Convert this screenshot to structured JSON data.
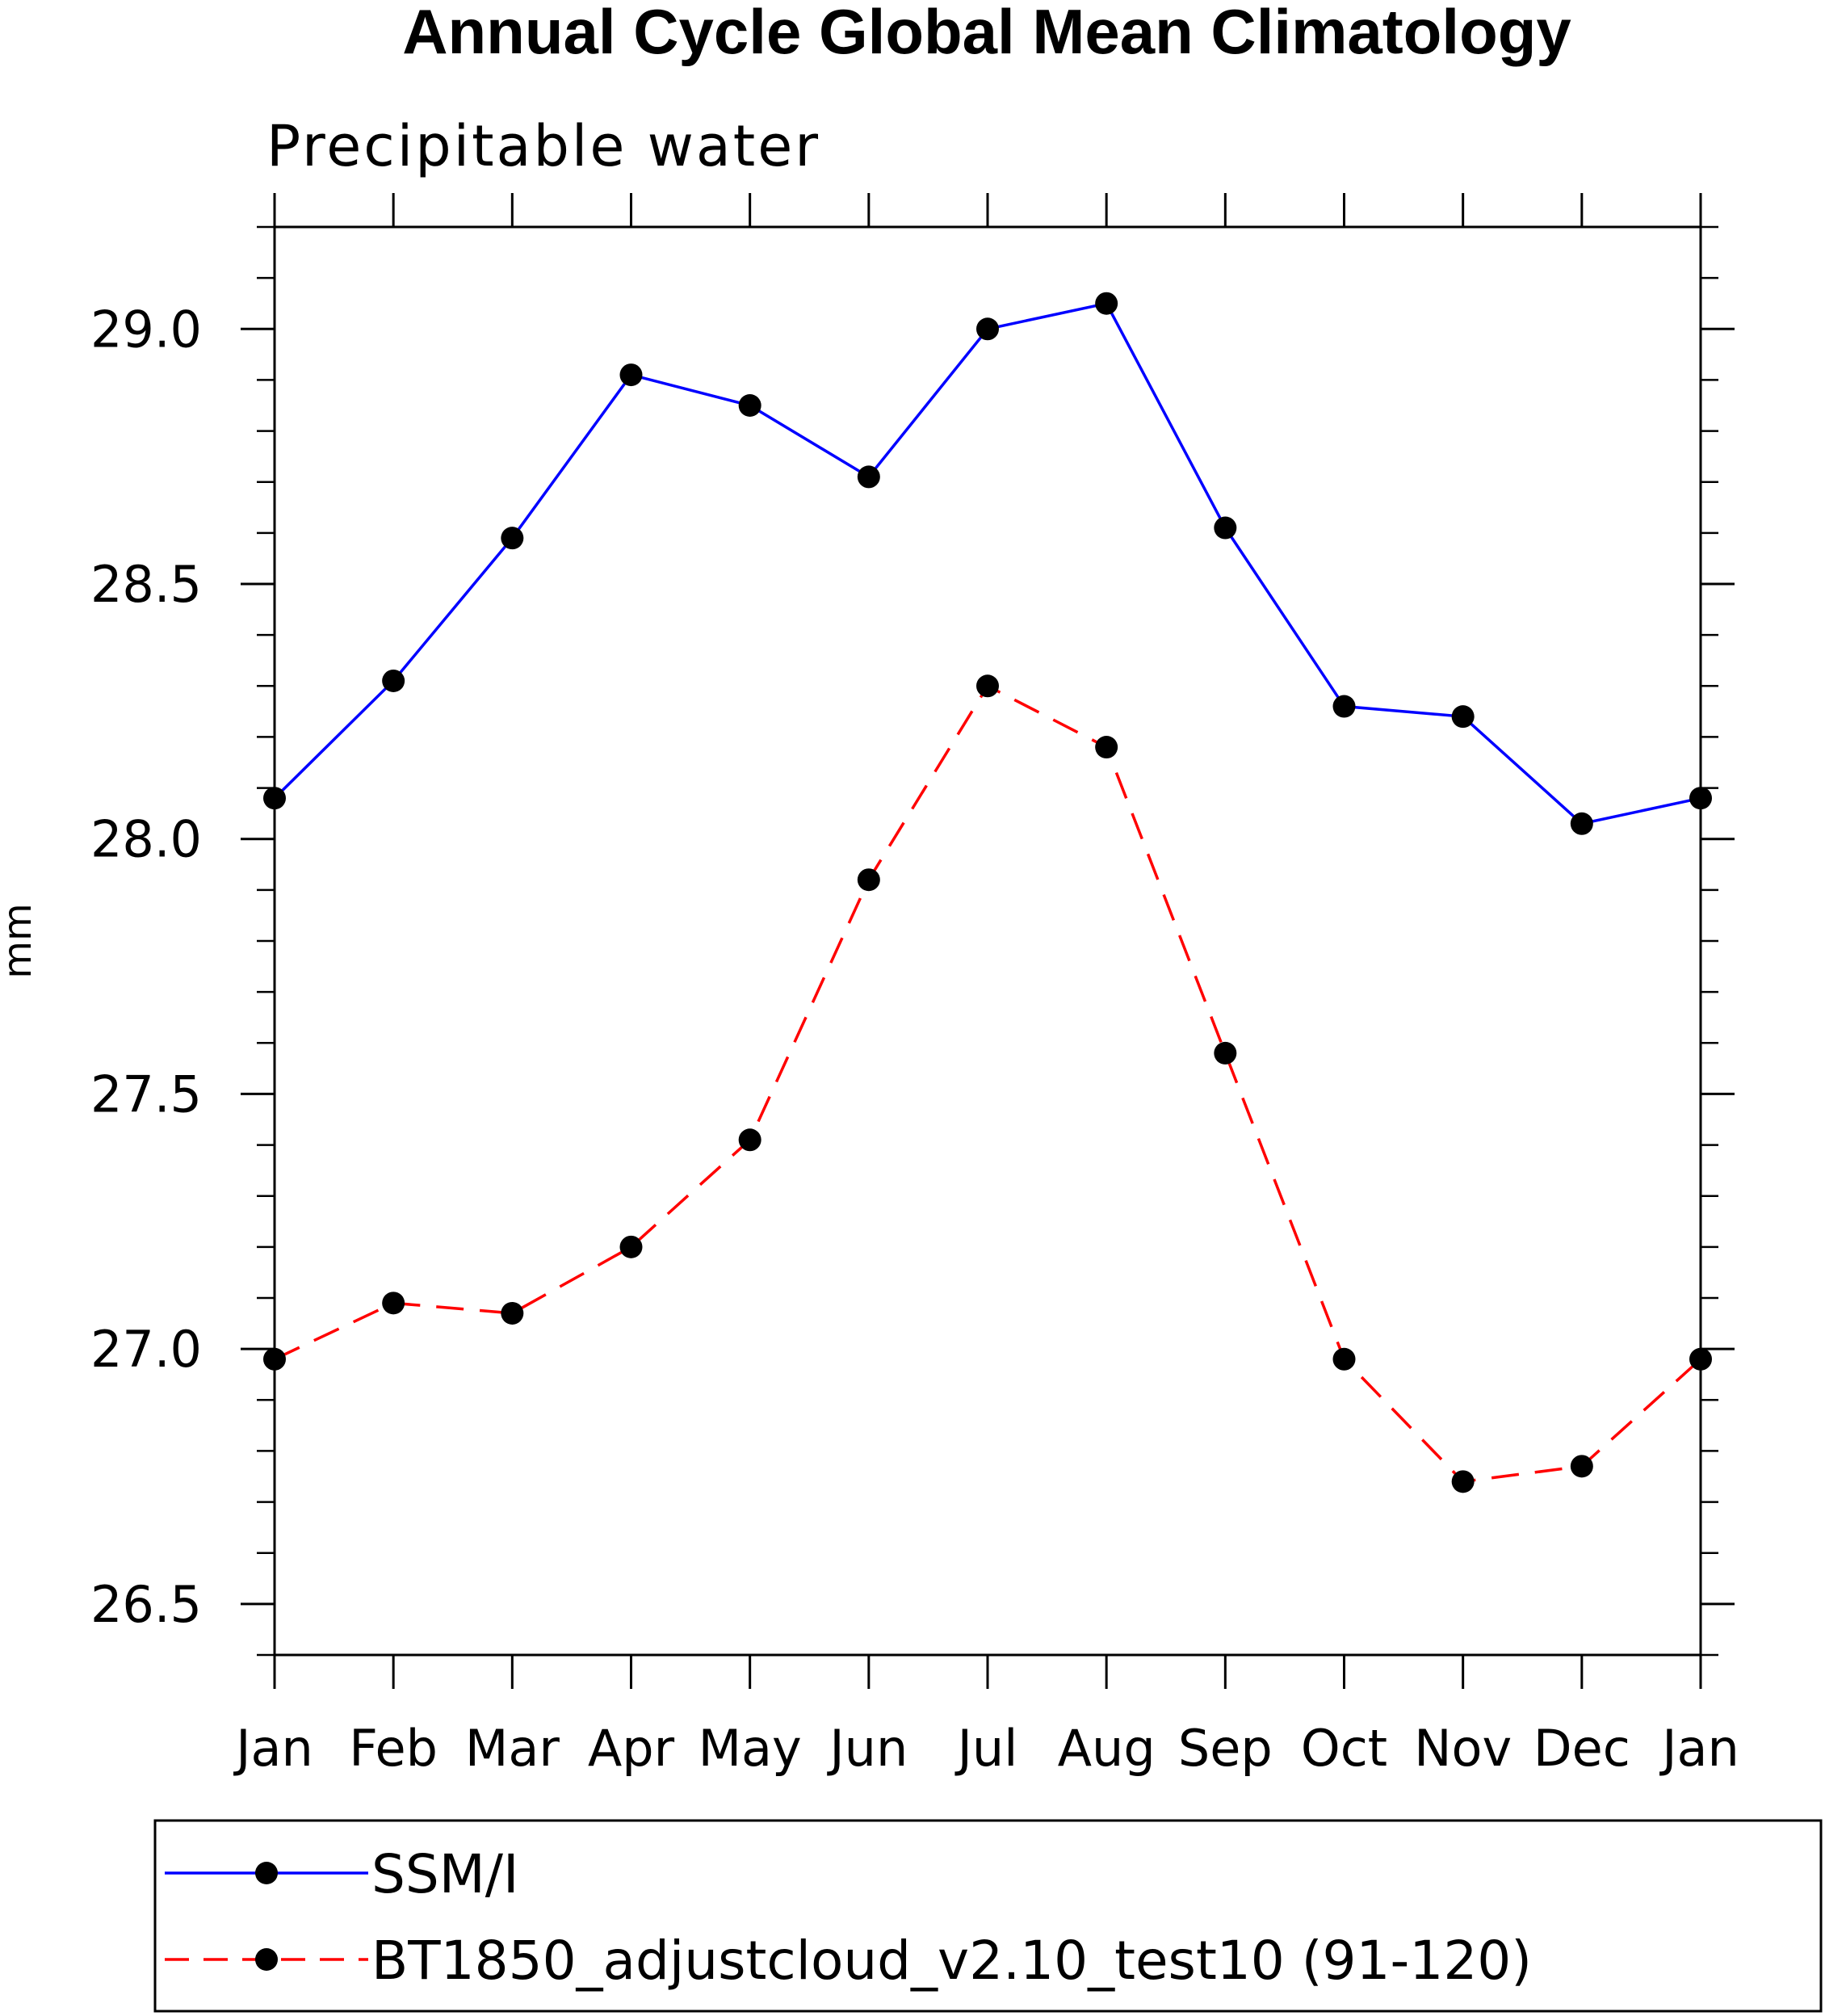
{
  "chart_data": {
    "type": "line",
    "title": "Annual Cycle Global Mean Climatology",
    "subtitle": "Precipitable water",
    "xlabel": "",
    "ylabel": "mm",
    "categories": [
      "Jan",
      "Feb",
      "Mar",
      "Apr",
      "May",
      "Jun",
      "Jul",
      "Aug",
      "Sep",
      "Oct",
      "Nov",
      "Dec",
      "Jan"
    ],
    "ylim": [
      26.4,
      29.2
    ],
    "yticks": [
      "26.5",
      "27.0",
      "27.5",
      "28.0",
      "28.5",
      "29.0"
    ],
    "ytick_values": [
      26.5,
      27.0,
      27.5,
      28.0,
      28.5,
      29.0
    ],
    "grid": false,
    "legend_position": "bottom",
    "series": [
      {
        "name": "SSM/I",
        "color": "#0000ff",
        "style": "solid",
        "marker": "circle",
        "values": [
          28.08,
          28.31,
          28.59,
          28.91,
          28.85,
          28.71,
          29.0,
          29.05,
          28.61,
          28.26,
          28.24,
          28.03,
          28.08
        ]
      },
      {
        "name": "BT1850_adjustcloud_v2.10_test10 (91-120)",
        "color": "#ff0000",
        "style": "dashed",
        "marker": "circle",
        "values": [
          26.98,
          27.09,
          27.07,
          27.2,
          27.41,
          27.92,
          28.3,
          28.18,
          27.58,
          26.98,
          26.74,
          26.77,
          26.98
        ]
      }
    ]
  }
}
